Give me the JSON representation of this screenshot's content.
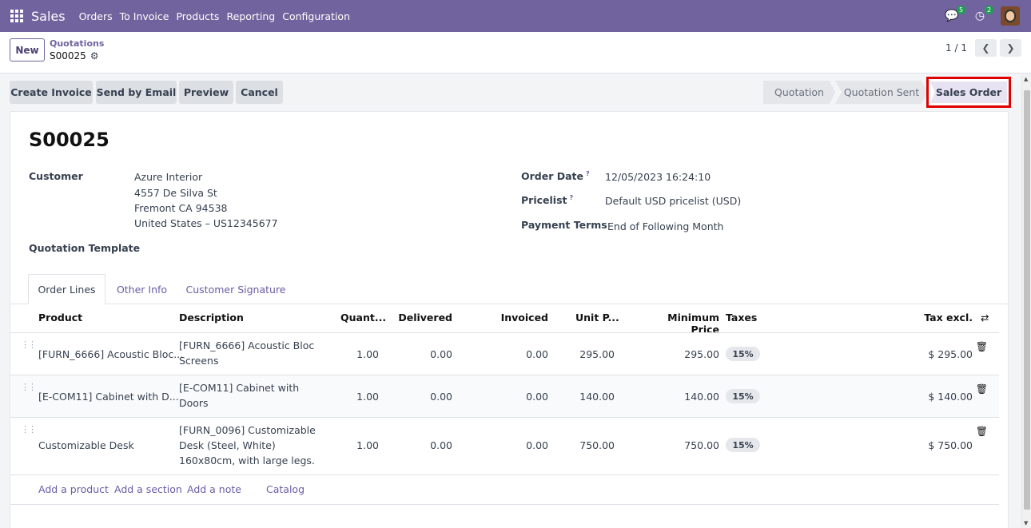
{
  "topbar": {
    "app_name": "Sales",
    "menu": [
      "Orders",
      "To Invoice",
      "Products",
      "Reporting",
      "Configuration"
    ],
    "messages_badge": "5",
    "activities_badge": "2"
  },
  "control": {
    "new_label": "New",
    "breadcrumb_parent": "Quotations",
    "breadcrumb_current": "S00025",
    "pager": "1 / 1"
  },
  "actions": [
    "Create Invoice",
    "Send by Email",
    "Preview",
    "Cancel"
  ],
  "stages": [
    "Quotation",
    "Quotation Sent",
    "Sales Order"
  ],
  "form": {
    "title": "S00025",
    "customer_label": "Customer",
    "customer_name": "Azure Interior",
    "address_line1": "4557 De Silva St",
    "address_line2": "Fremont CA 94538",
    "address_line3": "United States – US12345677",
    "quotation_template_label": "Quotation Template",
    "order_date_label": "Order Date",
    "order_date": "12/05/2023 16:24:10",
    "pricelist_label": "Pricelist",
    "pricelist": "Default USD pricelist (USD)",
    "payment_terms_label": "Payment Terms",
    "payment_terms": "End of Following Month",
    "help_mark": "?"
  },
  "tabs": [
    "Order Lines",
    "Other Info",
    "Customer Signature"
  ],
  "table": {
    "headers": [
      "Product",
      "Description",
      "Quant...",
      "Delivered",
      "Invoiced",
      "Unit P...",
      "Minimum Price",
      "Taxes",
      "Tax excl."
    ],
    "rows": [
      {
        "product": "[FURN_6666] Acoustic Bloc...",
        "desc1": "[FURN_6666] Acoustic Bloc",
        "desc2": "Screens",
        "desc3": "",
        "qty": "1.00",
        "delivered": "0.00",
        "invoiced": "0.00",
        "unit_price": "295.00",
        "min_price": "295.00",
        "tax": "15%",
        "subtotal": "$ 295.00"
      },
      {
        "product": "[E-COM11] Cabinet with D...",
        "desc1": "[E-COM11] Cabinet with",
        "desc2": "Doors",
        "desc3": "",
        "qty": "1.00",
        "delivered": "0.00",
        "invoiced": "0.00",
        "unit_price": "140.00",
        "min_price": "140.00",
        "tax": "15%",
        "subtotal": "$ 140.00"
      },
      {
        "product": "Customizable Desk",
        "desc1": "[FURN_0096] Customizable",
        "desc2": "Desk (Steel, White)",
        "desc3": "160x80cm, with large legs.",
        "qty": "1.00",
        "delivered": "0.00",
        "invoiced": "0.00",
        "unit_price": "750.00",
        "min_price": "750.00",
        "tax": "15%",
        "subtotal": "$ 750.00"
      }
    ],
    "add_links": [
      "Add a product",
      "Add a section",
      "Add a note",
      "Catalog"
    ]
  },
  "colors": {
    "topbar": "#71639e",
    "link": "#6b5ca5",
    "highlight": "#e00000"
  }
}
